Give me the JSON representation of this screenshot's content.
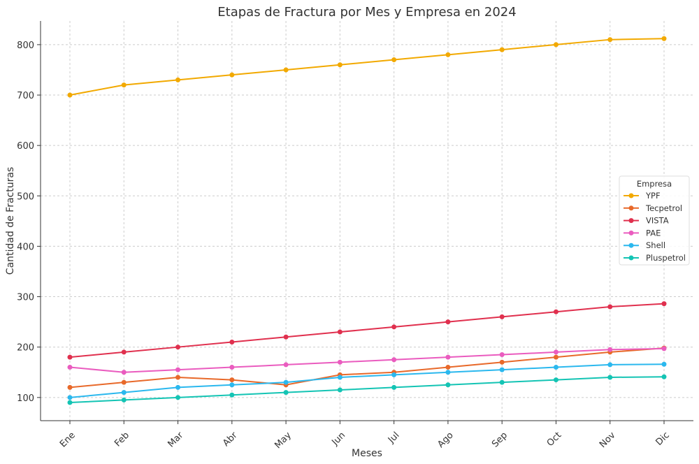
{
  "chart_data": {
    "type": "line",
    "title": "Etapas de Fractura por Mes y Empresa en 2024",
    "xlabel": "Meses",
    "ylabel": "Cantidad de Fracturas",
    "categories": [
      "Ene",
      "Feb",
      "Mar",
      "Abr",
      "May",
      "Jun",
      "Jul",
      "Ago",
      "Sep",
      "Oct",
      "Nov",
      "Dic"
    ],
    "ylim": [
      54,
      847
    ],
    "yticks": [
      100,
      200,
      300,
      400,
      500,
      600,
      700,
      800
    ],
    "grid": true,
    "legend": {
      "title": "Empresa",
      "placement": "center-right"
    },
    "series": [
      {
        "name": "YPF",
        "color": "#f2a900",
        "values": [
          700,
          720,
          730,
          740,
          750,
          760,
          770,
          780,
          790,
          800,
          810,
          812
        ]
      },
      {
        "name": "Tecpetrol",
        "color": "#e8692a",
        "values": [
          120,
          130,
          140,
          135,
          125,
          145,
          150,
          160,
          170,
          180,
          190,
          198
        ]
      },
      {
        "name": "VISTA",
        "color": "#e0304e",
        "values": [
          180,
          190,
          200,
          210,
          220,
          230,
          240,
          250,
          260,
          270,
          280,
          286
        ]
      },
      {
        "name": "PAE",
        "color": "#ea5cbf",
        "values": [
          160,
          150,
          155,
          160,
          165,
          170,
          175,
          180,
          185,
          190,
          195,
          197
        ]
      },
      {
        "name": "Shell",
        "color": "#2bb8ee",
        "values": [
          100,
          110,
          120,
          125,
          130,
          140,
          145,
          150,
          155,
          160,
          165,
          166
        ]
      },
      {
        "name": "Pluspetrol",
        "color": "#14c4b4",
        "values": [
          90,
          95,
          100,
          105,
          110,
          115,
          120,
          125,
          130,
          135,
          140,
          141
        ]
      }
    ]
  }
}
